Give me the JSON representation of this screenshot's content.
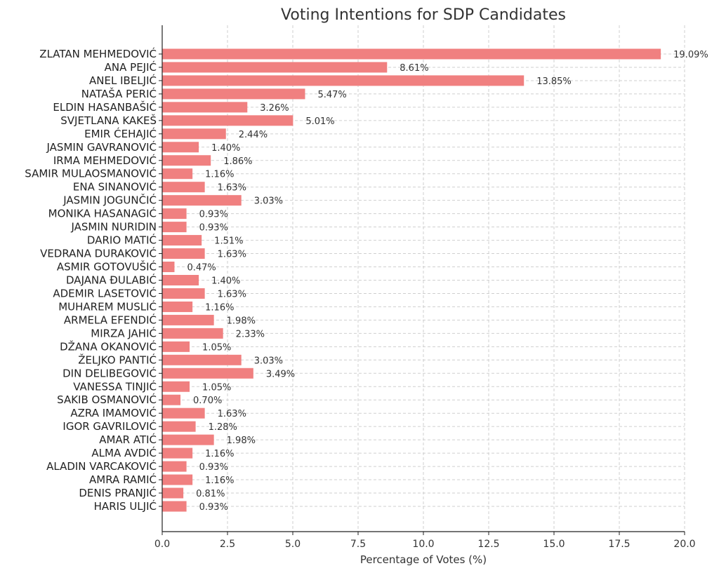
{
  "chart_data": {
    "type": "bar",
    "orientation": "horizontal",
    "title": "Voting Intentions for SDP Candidates",
    "xlabel": "Percentage of Votes (%)",
    "ylabel": "",
    "xlim": [
      0,
      20
    ],
    "xticks": [
      "0.0",
      "2.5",
      "5.0",
      "7.5",
      "10.0",
      "12.5",
      "15.0",
      "17.5",
      "20.0"
    ],
    "grid": true,
    "bar_color": "#f08080",
    "categories": [
      "ZLATAN MEHMEDOVIĆ",
      "ANA PEJIĆ",
      "ANEL IBELJIĆ",
      "NATAŠA PERIĆ",
      "ELDIN HASANBAŠIĆ",
      "SVJETLANA KAKEŠ",
      "EMIR ĆEHAJIĆ",
      "JASMIN GAVRANOVIĆ",
      "IRMA MEHMEDOVIĆ",
      "SAMIR MULAOSMANOVIĆ",
      "ENA SINANOVIĆ",
      "JASMIN JOGUNČIĆ",
      "MONIKA HASANAGIĆ",
      "JASMIN NURIDIN",
      "DARIO MATIĆ",
      "VEDRANA DURAKOVIĆ",
      "ASMIR GOTOVUŠIĆ",
      "DAJANA ĐULABIĆ",
      "ADEMIR LASETOVIĆ",
      "MUHAREM MUSLIĆ",
      "ARMELA EFENDIĆ",
      "MIRZA JAHIĆ",
      "DŽANA OKANOVIĆ",
      "ŽELJKO PANTIĆ",
      "DIN DELIBEGOVIĆ",
      "VANESSA TINJIĆ",
      "SAKIB OSMANOVIĆ",
      "AZRA IMAMOVIĆ",
      "IGOR GAVRILOVIĆ",
      "AMAR ATIĆ",
      "ALMA AVDIĆ",
      "ALADIN VARCAKOVIĆ",
      "AMRA RAMIĆ",
      "DENIS PRANJIĆ",
      "HARIS ULJIĆ"
    ],
    "values": [
      19.09,
      8.61,
      13.85,
      5.47,
      3.26,
      5.01,
      2.44,
      1.4,
      1.86,
      1.16,
      1.63,
      3.03,
      0.93,
      0.93,
      1.51,
      1.63,
      0.47,
      1.4,
      1.63,
      1.16,
      1.98,
      2.33,
      1.05,
      3.03,
      3.49,
      1.05,
      0.7,
      1.63,
      1.28,
      1.98,
      1.16,
      0.93,
      1.16,
      0.81,
      0.93
    ],
    "value_labels": [
      "19.09%",
      "8.61%",
      "13.85%",
      "5.47%",
      "3.26%",
      "5.01%",
      "2.44%",
      "1.40%",
      "1.86%",
      "1.16%",
      "1.63%",
      "3.03%",
      "0.93%",
      "0.93%",
      "1.51%",
      "1.63%",
      "0.47%",
      "1.40%",
      "1.63%",
      "1.16%",
      "1.98%",
      "2.33%",
      "1.05%",
      "3.03%",
      "3.49%",
      "1.05%",
      "0.70%",
      "1.63%",
      "1.28%",
      "1.98%",
      "1.16%",
      "0.93%",
      "1.16%",
      "0.81%",
      "0.93%"
    ]
  }
}
